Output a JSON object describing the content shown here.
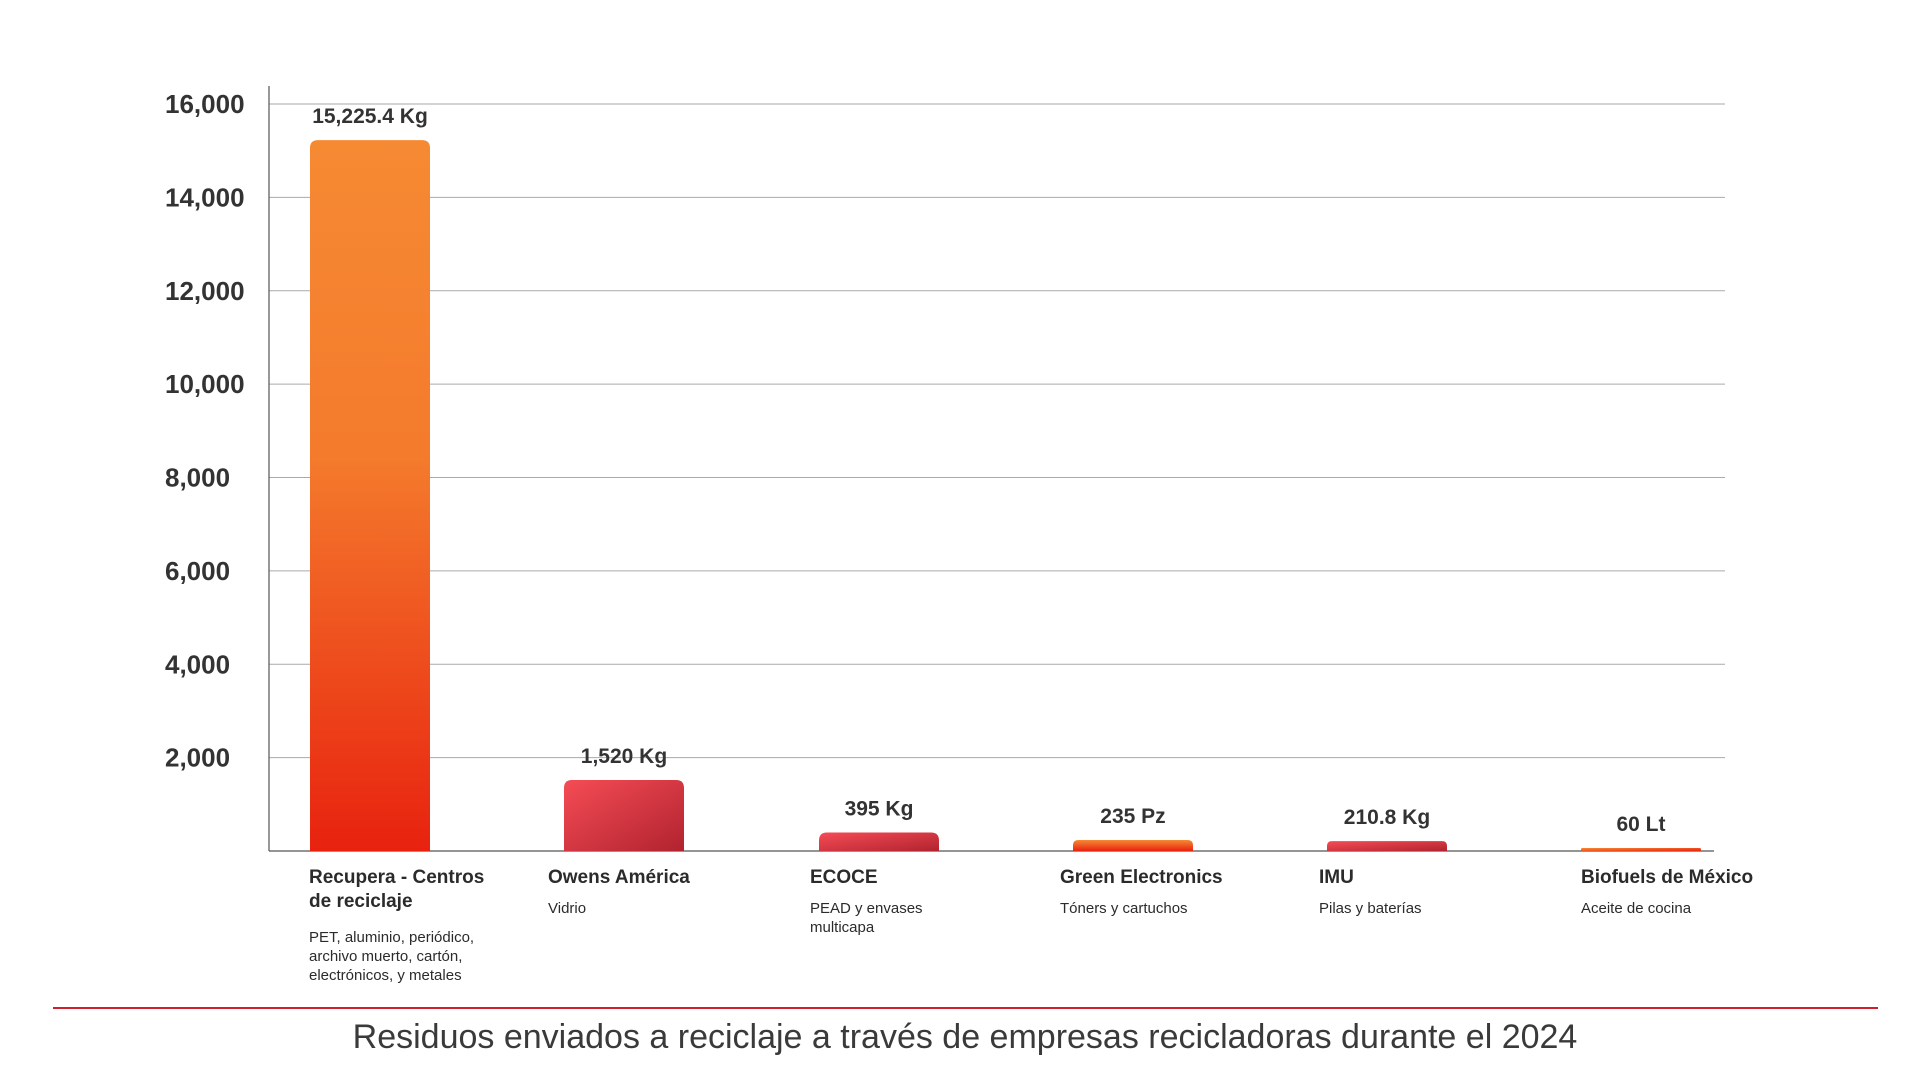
{
  "chart_data": {
    "type": "bar",
    "title": "Residuos enviados a reciclaje a través de empresas recicladoras durante el 2024",
    "xlabel": "",
    "ylabel": "",
    "ylim": [
      0,
      16000
    ],
    "yticks": [
      2000,
      4000,
      6000,
      8000,
      10000,
      12000,
      14000,
      16000
    ],
    "ytick_labels": [
      "2,000",
      "4,000",
      "6,000",
      "8,000",
      "10,000",
      "12,000",
      "14,000",
      "16,000"
    ],
    "grid": true,
    "categories": [
      "Recupera - Centros de reciclaje",
      "Owens América",
      "ECOCE",
      "Green Electronics",
      "IMU",
      "Biofuels de México"
    ],
    "descriptions": [
      "PET, aluminio, periódico, archivo muerto, cartón, electrónicos, y metales",
      "Vidrio",
      "PEAD y envases multicapa",
      "Tóners y cartuchos",
      "Pilas y baterías",
      "Aceite de cocina"
    ],
    "values": [
      15225.4,
      1520,
      395,
      235,
      210.8,
      60
    ],
    "data_labels": [
      "15,225.4 Kg",
      "1,520 Kg",
      "395 Kg",
      "235 Pz",
      "210.8 Kg",
      "60 Lt"
    ],
    "bar_gradients": [
      [
        "#f68a33",
        "#e8220f"
      ],
      [
        "#f54c55",
        "#b1232f"
      ],
      [
        "#f54c55",
        "#b1232f"
      ],
      [
        "#f68a33",
        "#e8220f"
      ],
      [
        "#f54c55",
        "#b1232f"
      ],
      [
        "#f68a33",
        "#e8220f"
      ]
    ]
  },
  "colors": {
    "divider": "#d0202f",
    "text": "#333333",
    "grid": "#aaaaaa"
  }
}
